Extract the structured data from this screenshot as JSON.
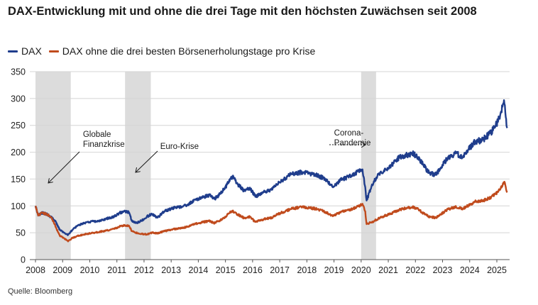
{
  "title": "DAX-Entwicklung mit und ohne die drei Tage mit den höchsten Zuwächsen seit 2008",
  "source": "Quelle: Bloomberg",
  "chart_data": {
    "type": "line",
    "title": "DAX-Entwicklung mit und ohne die drei Tage mit den höchsten Zuwächsen seit 2008",
    "xlabel": "",
    "ylabel": "",
    "xlim": [
      2008,
      2025.5
    ],
    "ylim": [
      0,
      350
    ],
    "yticks": [
      0,
      50,
      100,
      150,
      200,
      250,
      300,
      350
    ],
    "xticks": [
      "2008",
      "2009",
      "2010",
      "2011",
      "2012",
      "2013",
      "2014",
      "2015",
      "2016",
      "2017",
      "2018",
      "2019",
      "2020",
      "2021",
      "2022",
      "2023",
      "2024",
      "2025"
    ],
    "grid": "horizontal",
    "legend_position": "top-left",
    "crisis_periods": [
      {
        "start": 2008.0,
        "end": 2009.3
      },
      {
        "start": 2011.3,
        "end": 2012.25
      },
      {
        "start": 2020.0,
        "end": 2020.55
      }
    ],
    "annotations": [
      {
        "lines": [
          "Globale",
          "Finanzkrise"
        ],
        "x": 2009.8,
        "y": 225
      },
      {
        "lines": [
          "Euro-Krise"
        ],
        "x": 2012.7,
        "y": 210
      },
      {
        "lines": [
          "Corona-",
          "Pandemie"
        ],
        "x": 2018.95,
        "y": 228
      }
    ],
    "series": [
      {
        "name": "DAX",
        "color": "#1f3d8c",
        "points": [
          [
            2008.0,
            100
          ],
          [
            2008.1,
            82
          ],
          [
            2008.25,
            87
          ],
          [
            2008.45,
            84
          ],
          [
            2008.6,
            78
          ],
          [
            2008.75,
            70
          ],
          [
            2008.9,
            55
          ],
          [
            2009.05,
            50
          ],
          [
            2009.2,
            46
          ],
          [
            2009.35,
            55
          ],
          [
            2009.55,
            63
          ],
          [
            2009.8,
            68
          ],
          [
            2010.0,
            70
          ],
          [
            2010.3,
            72
          ],
          [
            2010.6,
            76
          ],
          [
            2010.9,
            80
          ],
          [
            2011.1,
            87
          ],
          [
            2011.3,
            90
          ],
          [
            2011.45,
            88
          ],
          [
            2011.55,
            72
          ],
          [
            2011.7,
            68
          ],
          [
            2011.9,
            72
          ],
          [
            2012.1,
            80
          ],
          [
            2012.3,
            85
          ],
          [
            2012.5,
            78
          ],
          [
            2012.75,
            90
          ],
          [
            2013.0,
            95
          ],
          [
            2013.3,
            98
          ],
          [
            2013.6,
            102
          ],
          [
            2013.9,
            112
          ],
          [
            2014.1,
            115
          ],
          [
            2014.4,
            120
          ],
          [
            2014.6,
            113
          ],
          [
            2014.8,
            122
          ],
          [
            2015.0,
            135
          ],
          [
            2015.25,
            155
          ],
          [
            2015.45,
            140
          ],
          [
            2015.7,
            128
          ],
          [
            2015.9,
            134
          ],
          [
            2016.1,
            117
          ],
          [
            2016.4,
            125
          ],
          [
            2016.7,
            130
          ],
          [
            2016.9,
            140
          ],
          [
            2017.1,
            148
          ],
          [
            2017.4,
            158
          ],
          [
            2017.7,
            162
          ],
          [
            2017.9,
            163
          ],
          [
            2018.1,
            160
          ],
          [
            2018.3,
            158
          ],
          [
            2018.6,
            152
          ],
          [
            2018.9,
            138
          ],
          [
            2019.0,
            136
          ],
          [
            2019.3,
            150
          ],
          [
            2019.6,
            155
          ],
          [
            2019.9,
            165
          ],
          [
            2020.05,
            168
          ],
          [
            2020.15,
            135
          ],
          [
            2020.2,
            110
          ],
          [
            2020.4,
            140
          ],
          [
            2020.7,
            162
          ],
          [
            2020.9,
            168
          ],
          [
            2021.1,
            175
          ],
          [
            2021.4,
            190
          ],
          [
            2021.7,
            195
          ],
          [
            2021.9,
            198
          ],
          [
            2022.1,
            190
          ],
          [
            2022.3,
            175
          ],
          [
            2022.5,
            162
          ],
          [
            2022.75,
            158
          ],
          [
            2022.95,
            172
          ],
          [
            2023.2,
            190
          ],
          [
            2023.5,
            198
          ],
          [
            2023.75,
            190
          ],
          [
            2023.95,
            205
          ],
          [
            2024.2,
            220
          ],
          [
            2024.45,
            222
          ],
          [
            2024.7,
            232
          ],
          [
            2024.9,
            245
          ],
          [
            2025.05,
            258
          ],
          [
            2025.15,
            275
          ],
          [
            2025.22,
            288
          ],
          [
            2025.28,
            290
          ],
          [
            2025.33,
            265
          ],
          [
            2025.38,
            245
          ]
        ]
      },
      {
        "name": "DAX ohne die drei besten Börsenerholungstage pro Krise",
        "color": "#c04b1d",
        "points": [
          [
            2008.0,
            100
          ],
          [
            2008.1,
            82
          ],
          [
            2008.25,
            87
          ],
          [
            2008.45,
            84
          ],
          [
            2008.6,
            78
          ],
          [
            2008.75,
            60
          ],
          [
            2008.9,
            44
          ],
          [
            2009.05,
            40
          ],
          [
            2009.2,
            34
          ],
          [
            2009.35,
            40
          ],
          [
            2009.55,
            44
          ],
          [
            2009.8,
            47
          ],
          [
            2010.0,
            49
          ],
          [
            2010.3,
            51
          ],
          [
            2010.6,
            54
          ],
          [
            2010.9,
            57
          ],
          [
            2011.1,
            62
          ],
          [
            2011.3,
            64
          ],
          [
            2011.45,
            63
          ],
          [
            2011.55,
            53
          ],
          [
            2011.7,
            50
          ],
          [
            2011.9,
            48
          ],
          [
            2012.1,
            47
          ],
          [
            2012.3,
            50
          ],
          [
            2012.5,
            49
          ],
          [
            2012.75,
            53
          ],
          [
            2013.0,
            56
          ],
          [
            2013.3,
            58
          ],
          [
            2013.6,
            61
          ],
          [
            2013.9,
            67
          ],
          [
            2014.1,
            69
          ],
          [
            2014.4,
            72
          ],
          [
            2014.6,
            68
          ],
          [
            2014.8,
            73
          ],
          [
            2015.0,
            80
          ],
          [
            2015.25,
            91
          ],
          [
            2015.45,
            84
          ],
          [
            2015.7,
            77
          ],
          [
            2015.9,
            80
          ],
          [
            2016.1,
            70
          ],
          [
            2016.4,
            75
          ],
          [
            2016.7,
            78
          ],
          [
            2016.9,
            84
          ],
          [
            2017.1,
            88
          ],
          [
            2017.4,
            94
          ],
          [
            2017.7,
            97
          ],
          [
            2017.9,
            98
          ],
          [
            2018.1,
            96
          ],
          [
            2018.3,
            95
          ],
          [
            2018.6,
            91
          ],
          [
            2018.9,
            83
          ],
          [
            2019.0,
            82
          ],
          [
            2019.3,
            90
          ],
          [
            2019.6,
            93
          ],
          [
            2019.9,
            99
          ],
          [
            2020.05,
            104
          ],
          [
            2020.15,
            90
          ],
          [
            2020.2,
            66
          ],
          [
            2020.4,
            70
          ],
          [
            2020.7,
            78
          ],
          [
            2020.9,
            82
          ],
          [
            2021.1,
            86
          ],
          [
            2021.4,
            93
          ],
          [
            2021.7,
            96
          ],
          [
            2021.9,
            98
          ],
          [
            2022.1,
            94
          ],
          [
            2022.3,
            86
          ],
          [
            2022.5,
            80
          ],
          [
            2022.75,
            78
          ],
          [
            2022.95,
            85
          ],
          [
            2023.2,
            94
          ],
          [
            2023.5,
            98
          ],
          [
            2023.75,
            94
          ],
          [
            2023.95,
            101
          ],
          [
            2024.2,
            108
          ],
          [
            2024.45,
            109
          ],
          [
            2024.7,
            114
          ],
          [
            2024.9,
            120
          ],
          [
            2025.05,
            126
          ],
          [
            2025.15,
            135
          ],
          [
            2025.22,
            141
          ],
          [
            2025.28,
            145
          ],
          [
            2025.33,
            135
          ],
          [
            2025.38,
            125
          ]
        ]
      }
    ]
  }
}
